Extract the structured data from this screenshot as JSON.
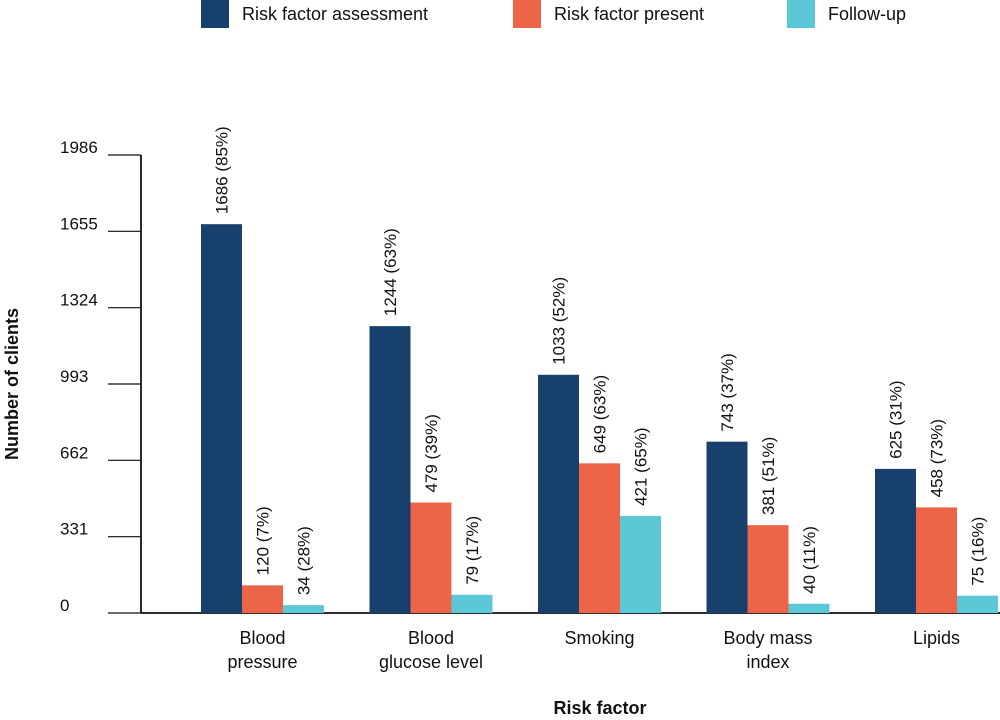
{
  "chart_data": {
    "type": "bar",
    "title": "",
    "xlabel": "Risk factor",
    "ylabel": "Number of clients",
    "ylim": [
      0,
      1986
    ],
    "yticks": [
      "0",
      "331",
      "662",
      "993",
      "1324",
      "1655",
      "1986"
    ],
    "grid": false,
    "legend_position": "top",
    "categories": [
      [
        "Blood",
        "pressure"
      ],
      [
        "Blood",
        "glucose level"
      ],
      [
        "Smoking"
      ],
      [
        "Body mass",
        "index"
      ],
      [
        "Lipids"
      ]
    ],
    "series": [
      {
        "name": "Risk factor assessment",
        "color": "#17406d",
        "values": [
          1686,
          1244,
          1033,
          743,
          625
        ],
        "labels": [
          "1686 (85%)",
          "1244 (63%)",
          "1033 (52%)",
          "743 (37%)",
          "625 (31%)"
        ]
      },
      {
        "name": "Risk factor present",
        "color": "#ec6549",
        "values": [
          120,
          479,
          649,
          381,
          458
        ],
        "labels": [
          "120 (7%)",
          "479 (39%)",
          "649 (63%)",
          "381 (51%)",
          "458 (73%)"
        ]
      },
      {
        "name": "Follow-up",
        "color": "#5cc8d7",
        "values": [
          34,
          79,
          421,
          40,
          75
        ],
        "labels": [
          "34 (28%)",
          "79 (17%)",
          "421 (65%)",
          "40 (11%)",
          "75 (16%)"
        ]
      }
    ]
  }
}
